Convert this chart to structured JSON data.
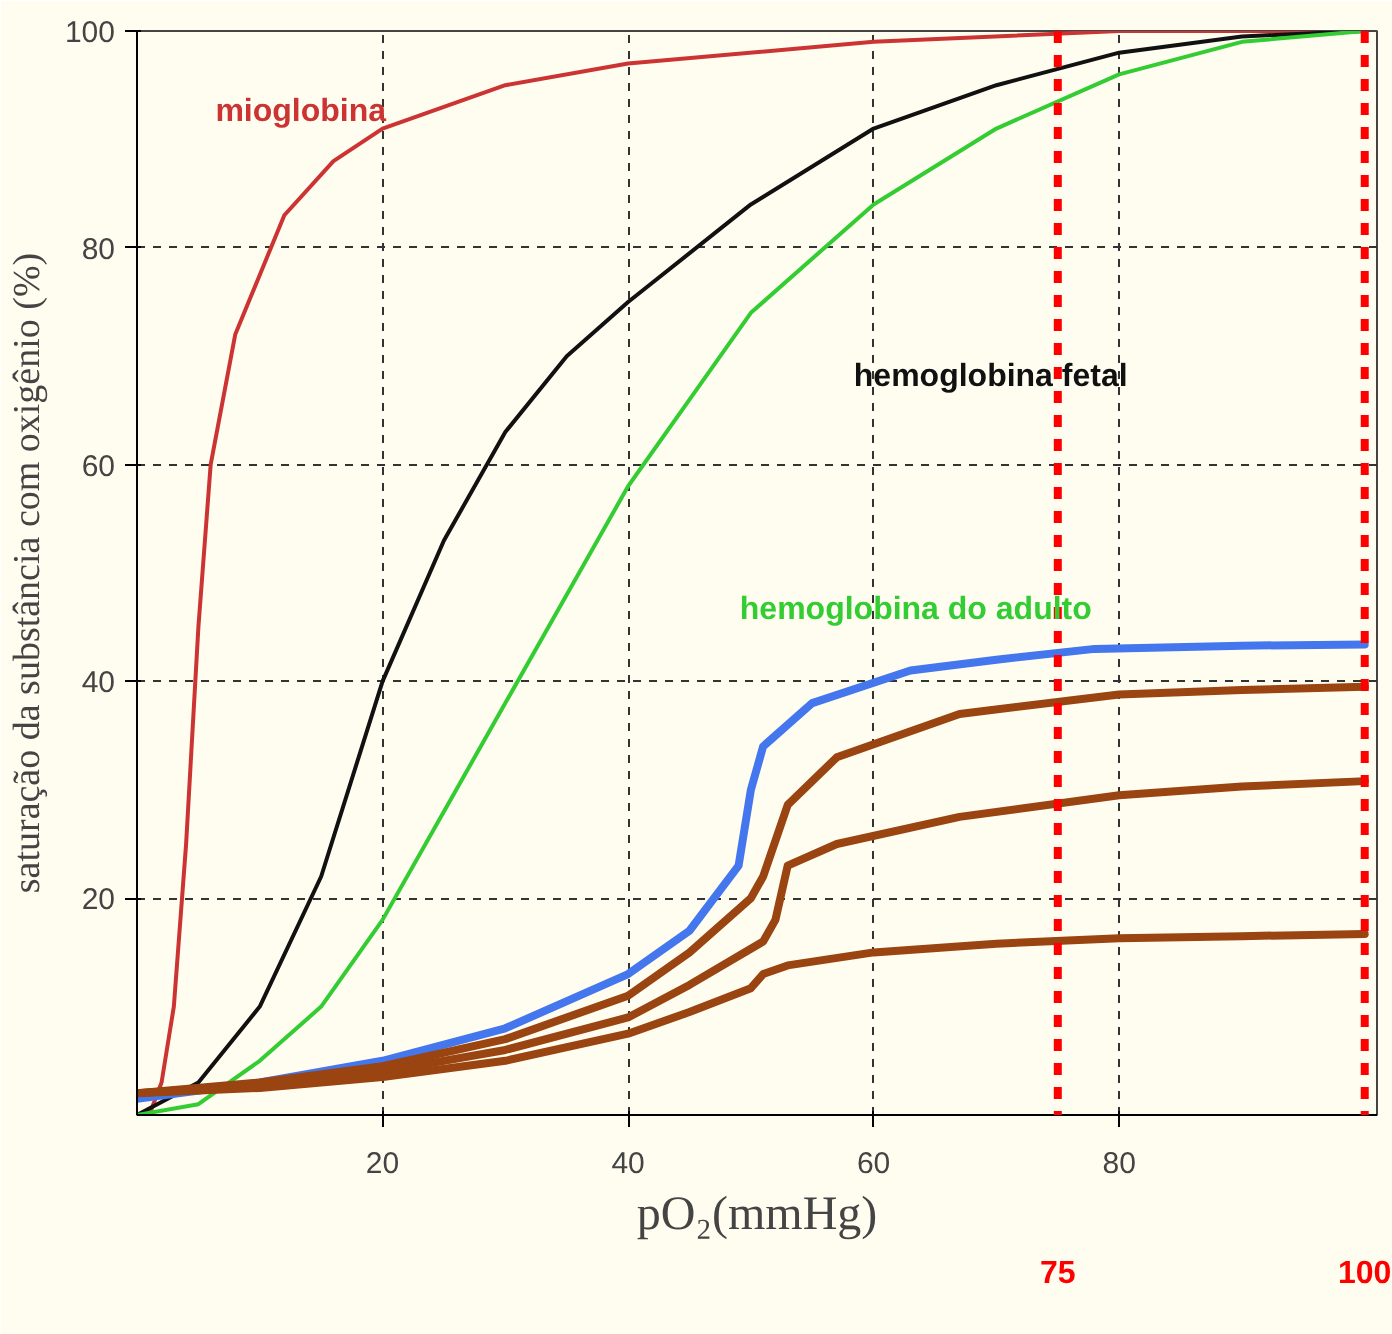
{
  "chart_data": {
    "type": "line",
    "xlabel": "pO₂(mmHg)",
    "ylabel": "saturação da substância com oxigênio (%)",
    "xlim": [
      0,
      101
    ],
    "ylim": [
      0,
      100
    ],
    "xticks": [
      20,
      40,
      60,
      80
    ],
    "yticks": [
      20,
      40,
      60,
      80,
      100
    ],
    "grid": true,
    "line_style": "solid",
    "series": [
      {
        "color": "#cc3333",
        "x": [
          1,
          2,
          3,
          4,
          5,
          6,
          8,
          12,
          16,
          20,
          30,
          40,
          60,
          80,
          100
        ],
        "values": [
          0,
          3,
          10,
          25,
          45,
          60,
          72,
          83,
          88,
          91,
          95,
          97,
          99,
          100,
          100
        ]
      },
      {
        "color": "#111111",
        "x": [
          0,
          5,
          10,
          15,
          20,
          25,
          30,
          35,
          40,
          50,
          60,
          70,
          80,
          90,
          100
        ],
        "values": [
          0,
          3,
          10,
          22,
          40,
          53,
          63,
          70,
          75,
          84,
          91,
          95,
          98,
          99.5,
          100
        ]
      },
      {
        "color": "#33cc33",
        "x": [
          0,
          5,
          10,
          15,
          20,
          25,
          30,
          35,
          40,
          45,
          50,
          60,
          70,
          80,
          90,
          100
        ],
        "values": [
          0,
          1,
          5,
          10,
          18,
          28,
          38,
          48,
          58,
          66,
          74,
          84,
          91,
          96,
          99,
          100
        ]
      },
      {
        "color": "#4477ee",
        "x": [
          0,
          10,
          20,
          30,
          40,
          45,
          49,
          50,
          51,
          55,
          63,
          70,
          78,
          90,
          100
        ],
        "values": [
          1.5,
          3,
          5,
          8,
          13,
          17,
          23,
          30,
          34,
          38,
          41,
          42,
          43,
          43.3,
          43.4
        ]
      },
      {
        "color": "#994411",
        "x": [
          0,
          10,
          20,
          30,
          40,
          45,
          50,
          51,
          53,
          57,
          67,
          80,
          90,
          100
        ],
        "values": [
          2,
          3,
          4.5,
          7,
          11,
          15,
          20,
          22,
          28.6,
          33,
          37,
          38.8,
          39.2,
          39.5
        ]
      },
      {
        "color": "#994411",
        "x": [
          0,
          10,
          20,
          30,
          40,
          45,
          51,
          52,
          53,
          57,
          67,
          80,
          90,
          100
        ],
        "values": [
          2,
          2.8,
          4,
          6,
          9,
          12,
          16,
          18,
          23,
          25,
          27.5,
          29.5,
          30.3,
          30.8
        ]
      },
      {
        "color": "#994411",
        "x": [
          0,
          10,
          20,
          30,
          40,
          45,
          50,
          51,
          53,
          60,
          70,
          80,
          90,
          100
        ],
        "values": [
          2,
          2.5,
          3.5,
          5,
          7.5,
          9.5,
          11.7,
          13,
          13.8,
          15,
          15.8,
          16.3,
          16.5,
          16.7
        ]
      }
    ],
    "ref_lines": [
      {
        "axis": "x",
        "value": 75,
        "label": "75",
        "color": "#ff0000",
        "line_style": "dashed"
      },
      {
        "axis": "x",
        "value": 100,
        "label": "100",
        "color": "#ff0000",
        "line_style": "dashed"
      }
    ],
    "annotations": [
      "mioglobina",
      "hemoglobina fetal",
      "hemoglobina do adulto"
    ]
  }
}
